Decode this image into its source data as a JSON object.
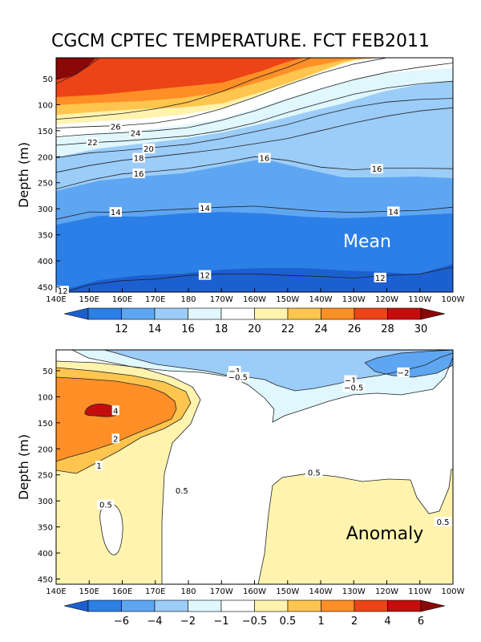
{
  "title": "CGCM CPTEC TEMPERATURE. FCT FEB2011",
  "chart_data": [
    {
      "type": "heatmap",
      "name": "mean",
      "panel_label": "Mean",
      "ylabel": "Depth (m)",
      "xticks": [
        "140E",
        "150E",
        "160E",
        "170E",
        "180",
        "170W",
        "160W",
        "150W",
        "140W",
        "130W",
        "120W",
        "110W",
        "100W"
      ],
      "yticks": [
        "50",
        "100",
        "150",
        "200",
        "250",
        "300",
        "350",
        "400",
        "450"
      ],
      "ylim": [
        460,
        10
      ],
      "xlim": [
        140,
        260
      ],
      "colorbar": {
        "ticks": [
          "12",
          "14",
          "16",
          "18",
          "20",
          "22",
          "24",
          "26",
          "28",
          "30"
        ],
        "levels": [
          12,
          14,
          16,
          18,
          20,
          22,
          24,
          26,
          28,
          30
        ],
        "colors": [
          "#1c5fd1",
          "#2c7fe6",
          "#5ea6f2",
          "#9cccf8",
          "#dff7fd",
          "#ffffff",
          "#fff3ae",
          "#ffc54e",
          "#ff8f26",
          "#ec4416",
          "#c40e0e",
          "#8a0808"
        ]
      },
      "contours": [
        {
          "value": 12,
          "points": [
            [
              140,
              465
            ],
            [
              150,
              446
            ],
            [
              160,
              438
            ],
            [
              170,
              435
            ],
            [
              180,
              428
            ],
            [
              190,
              425
            ],
            [
              200,
              425
            ],
            [
              210,
              428
            ],
            [
              220,
              430
            ],
            [
              230,
              433
            ],
            [
              240,
              428
            ],
            [
              250,
              425
            ],
            [
              260,
              412
            ]
          ]
        },
        {
          "value": 14,
          "points": [
            [
              140,
              320
            ],
            [
              150,
              306
            ],
            [
              160,
              307
            ],
            [
              170,
              303
            ],
            [
              180,
              300
            ],
            [
              190,
              297
            ],
            [
              200,
              295
            ],
            [
              210,
              300
            ],
            [
              220,
              305
            ],
            [
              230,
              307
            ],
            [
              240,
              305
            ],
            [
              250,
              303
            ],
            [
              260,
              297
            ]
          ]
        },
        {
          "value": 16,
          "points": [
            [
              140,
              262
            ],
            [
              150,
              245
            ],
            [
              160,
              233
            ],
            [
              170,
              228
            ],
            [
              180,
              222
            ],
            [
              190,
              212
            ],
            [
              200,
              200
            ],
            [
              210,
              207
            ],
            [
              220,
              220
            ],
            [
              230,
              225
            ],
            [
              240,
              222
            ],
            [
              250,
              222
            ],
            [
              260,
              223
            ]
          ]
        },
        {
          "value": 18,
          "points": [
            [
              140,
              230
            ],
            [
              150,
              217
            ],
            [
              160,
              207
            ],
            [
              170,
              200
            ],
            [
              180,
              193
            ],
            [
              190,
              185
            ],
            [
              200,
              175
            ],
            [
              210,
              165
            ],
            [
              220,
              150
            ],
            [
              230,
              135
            ],
            [
              240,
              122
            ],
            [
              250,
              112
            ],
            [
              260,
              106
            ]
          ]
        },
        {
          "value": 20,
          "points": [
            [
              140,
              202
            ],
            [
              150,
              193
            ],
            [
              160,
              188
            ],
            [
              170,
              182
            ],
            [
              180,
              176
            ],
            [
              190,
              165
            ],
            [
              200,
              152
            ],
            [
              210,
              138
            ],
            [
              220,
              120
            ],
            [
              230,
              105
            ],
            [
              240,
              95
            ],
            [
              250,
              90
            ],
            [
              260,
              88
            ]
          ]
        },
        {
          "value": 22,
          "points": [
            [
              140,
              178
            ],
            [
              150,
              173
            ],
            [
              160,
              170
            ],
            [
              170,
              165
            ],
            [
              180,
              160
            ],
            [
              190,
              150
            ],
            [
              200,
              135
            ],
            [
              210,
              115
            ],
            [
              220,
              97
            ],
            [
              230,
              80
            ],
            [
              240,
              68
            ],
            [
              250,
              60
            ],
            [
              260,
              55
            ]
          ]
        },
        {
          "value": 24,
          "points": [
            [
              140,
              162
            ],
            [
              150,
              157
            ],
            [
              160,
              154
            ],
            [
              170,
              150
            ],
            [
              180,
              144
            ],
            [
              190,
              130
            ],
            [
              200,
              112
            ],
            [
              210,
              90
            ],
            [
              220,
              70
            ],
            [
              230,
              52
            ],
            [
              240,
              38
            ],
            [
              250,
              28
            ],
            [
              260,
              20
            ]
          ]
        },
        {
          "value": 26,
          "points": [
            [
              140,
              145
            ],
            [
              150,
              142
            ],
            [
              160,
              140
            ],
            [
              170,
              135
            ],
            [
              180,
              125
            ],
            [
              190,
              108
            ],
            [
              200,
              86
            ],
            [
              210,
              62
            ],
            [
              220,
              40
            ],
            [
              230,
              22
            ],
            [
              240,
              10
            ]
          ]
        },
        {
          "value": 28,
          "points": [
            [
              140,
              128
            ],
            [
              150,
              123
            ],
            [
              160,
              117
            ],
            [
              170,
              108
            ],
            [
              180,
              95
            ],
            [
              190,
              75
            ],
            [
              200,
              50
            ],
            [
              210,
              28
            ],
            [
              217,
              10
            ]
          ]
        },
        {
          "value": 30,
          "points": [
            [
              140,
              60
            ],
            [
              145,
              45
            ],
            [
              150,
              25
            ],
            [
              153,
              10
            ]
          ]
        }
      ],
      "contour_labels": [
        {
          "text": "26",
          "lon": 158,
          "depth": 142
        },
        {
          "text": "24",
          "lon": 164,
          "depth": 154
        },
        {
          "text": "22",
          "lon": 151,
          "depth": 172
        },
        {
          "text": "20",
          "lon": 168,
          "depth": 184
        },
        {
          "text": "18",
          "lon": 165,
          "depth": 202
        },
        {
          "text": "16",
          "lon": 165,
          "depth": 232
        },
        {
          "text": "16",
          "lon": 203,
          "depth": 202
        },
        {
          "text": "16",
          "lon": 237,
          "depth": 223
        },
        {
          "text": "14",
          "lon": 158,
          "depth": 306
        },
        {
          "text": "14",
          "lon": 185,
          "depth": 298
        },
        {
          "text": "14",
          "lon": 242,
          "depth": 305
        },
        {
          "text": "12",
          "lon": 185,
          "depth": 427
        },
        {
          "text": "12",
          "lon": 238,
          "depth": 432
        },
        {
          "text": "12",
          "lon": 142,
          "depth": 457
        }
      ]
    },
    {
      "type": "heatmap",
      "name": "anomaly",
      "panel_label": "Anomaly",
      "ylabel": "Depth (m)",
      "xticks": [
        "140E",
        "150E",
        "160E",
        "170E",
        "180",
        "170W",
        "160W",
        "150W",
        "140W",
        "130W",
        "120W",
        "110W",
        "100W"
      ],
      "yticks": [
        "50",
        "100",
        "150",
        "200",
        "250",
        "300",
        "350",
        "400",
        "450"
      ],
      "ylim": [
        460,
        10
      ],
      "xlim": [
        140,
        260
      ],
      "colorbar": {
        "ticks": [
          "−6",
          "−4",
          "−2",
          "−1",
          "−0.5",
          "0.5",
          "1",
          "2",
          "4",
          "6"
        ],
        "levels": [
          -6,
          -4,
          -2,
          -1,
          -0.5,
          0.5,
          1,
          2,
          4,
          6
        ],
        "colors": [
          "#1c5fd1",
          "#2c7fe6",
          "#5ea6f2",
          "#9cccf8",
          "#dff7fd",
          "#ffffff",
          "#fff3ae",
          "#ffc54e",
          "#ff8f26",
          "#ec4416",
          "#c40e0e",
          "#8a0808"
        ]
      },
      "contour_labels": [
        {
          "text": "4",
          "lon": 158,
          "depth": 126
        },
        {
          "text": "2",
          "lon": 158,
          "depth": 180
        },
        {
          "text": "1",
          "lon": 153,
          "depth": 232
        },
        {
          "text": "0.5",
          "lon": 178,
          "depth": 280
        },
        {
          "text": "0.5",
          "lon": 155,
          "depth": 307
        },
        {
          "text": "0.5",
          "lon": 218,
          "depth": 245
        },
        {
          "text": "0.5",
          "lon": 257,
          "depth": 340
        },
        {
          "text": "−1",
          "lon": 194,
          "depth": 50
        },
        {
          "text": "−0.5",
          "lon": 195,
          "depth": 62
        },
        {
          "text": "−1",
          "lon": 229,
          "depth": 68
        },
        {
          "text": "−0.5",
          "lon": 230,
          "depth": 82
        },
        {
          "text": "−2",
          "lon": 245,
          "depth": 53
        }
      ]
    }
  ]
}
